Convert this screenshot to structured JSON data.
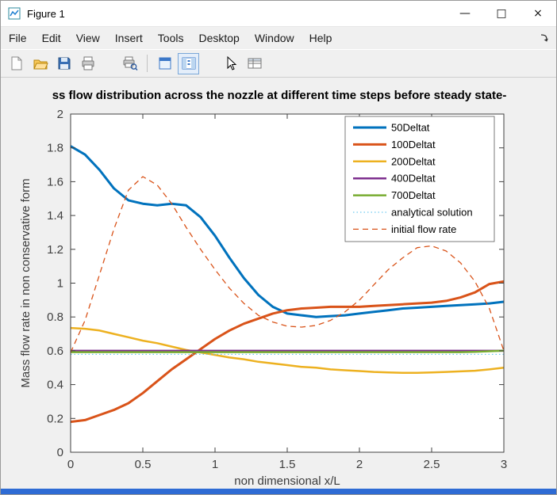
{
  "window": {
    "title": "Figure 1",
    "controls": {
      "minimize": "—",
      "maximize": "□",
      "close": "×"
    }
  },
  "menu": {
    "items": [
      "File",
      "Edit",
      "View",
      "Insert",
      "Tools",
      "Desktop",
      "Window",
      "Help"
    ]
  },
  "toolbar": {
    "icons": [
      "new-figure-icon",
      "open-file-icon",
      "save-figure-icon",
      "print-figure-icon",
      "print-preview-icon",
      "hide-plot-tools-icon",
      "show-plot-tools-icon",
      "pointer-icon",
      "property-editor-icon"
    ]
  },
  "chart_data": {
    "type": "line",
    "title": "ss flow distribution across the nozzle at different time steps before steady state-",
    "xlabel": "non dimensional x/L",
    "ylabel": "Mass flow rate in non conservative form",
    "xlim": [
      0,
      3
    ],
    "ylim": [
      0,
      2
    ],
    "xticks": [
      0,
      0.5,
      1,
      1.5,
      2,
      2.5,
      3
    ],
    "yticks": [
      0,
      0.2,
      0.4,
      0.6,
      0.8,
      1,
      1.2,
      1.4,
      1.6,
      1.8,
      2
    ],
    "legend_position": "northeast",
    "grid": false,
    "x": [
      0,
      0.1,
      0.2,
      0.3,
      0.4,
      0.5,
      0.6,
      0.7,
      0.8,
      0.9,
      1,
      1.1,
      1.2,
      1.3,
      1.4,
      1.5,
      1.6,
      1.7,
      1.8,
      1.9,
      2,
      2.1,
      2.2,
      2.3,
      2.4,
      2.5,
      2.6,
      2.7,
      2.8,
      2.9,
      3
    ],
    "series": [
      {
        "name": "50Deltat",
        "color": "#0072BD",
        "width": 3,
        "dash": null,
        "values": [
          1.81,
          1.76,
          1.67,
          1.56,
          1.49,
          1.47,
          1.46,
          1.47,
          1.46,
          1.39,
          1.28,
          1.15,
          1.03,
          0.93,
          0.86,
          0.82,
          0.81,
          0.8,
          0.805,
          0.81,
          0.82,
          0.83,
          0.84,
          0.85,
          0.855,
          0.86,
          0.865,
          0.87,
          0.875,
          0.88,
          0.89
        ]
      },
      {
        "name": "100Deltat",
        "color": "#D95319",
        "width": 3,
        "dash": null,
        "values": [
          0.18,
          0.19,
          0.22,
          0.25,
          0.29,
          0.35,
          0.42,
          0.49,
          0.55,
          0.61,
          0.67,
          0.72,
          0.76,
          0.79,
          0.82,
          0.84,
          0.85,
          0.855,
          0.86,
          0.86,
          0.86,
          0.865,
          0.87,
          0.875,
          0.88,
          0.885,
          0.895,
          0.915,
          0.945,
          0.995,
          1.01
        ]
      },
      {
        "name": "200Deltat",
        "color": "#EDB120",
        "width": 2.5,
        "dash": null,
        "values": [
          0.735,
          0.73,
          0.72,
          0.7,
          0.68,
          0.66,
          0.645,
          0.625,
          0.605,
          0.59,
          0.575,
          0.56,
          0.55,
          0.535,
          0.525,
          0.515,
          0.505,
          0.5,
          0.49,
          0.485,
          0.48,
          0.475,
          0.472,
          0.47,
          0.47,
          0.472,
          0.475,
          0.478,
          0.482,
          0.49,
          0.5
        ]
      },
      {
        "name": "400Deltat",
        "color": "#7E2F8E",
        "width": 2.5,
        "dash": null,
        "values": [
          0.6,
          0.6,
          0.6,
          0.6,
          0.6,
          0.6,
          0.6,
          0.6,
          0.6,
          0.6,
          0.6,
          0.6,
          0.6,
          0.6,
          0.6,
          0.6,
          0.6,
          0.6,
          0.6,
          0.6,
          0.6,
          0.6,
          0.6,
          0.6,
          0.6,
          0.6,
          0.6,
          0.6,
          0.6,
          0.6,
          0.6
        ]
      },
      {
        "name": "700Deltat",
        "color": "#77AC30",
        "width": 2.5,
        "dash": null,
        "values": [
          0.592,
          0.592,
          0.592,
          0.592,
          0.592,
          0.592,
          0.592,
          0.592,
          0.592,
          0.592,
          0.592,
          0.592,
          0.592,
          0.592,
          0.592,
          0.592,
          0.592,
          0.592,
          0.592,
          0.592,
          0.592,
          0.592,
          0.592,
          0.592,
          0.592,
          0.592,
          0.592,
          0.592,
          0.594,
          0.597,
          0.601
        ]
      },
      {
        "name": "analytical solution",
        "color": "#4DBEEE",
        "width": 1,
        "dash": "1.5 3",
        "values": [
          0.579,
          0.579,
          0.579,
          0.579,
          0.579,
          0.579,
          0.579,
          0.579,
          0.579,
          0.579,
          0.579,
          0.579,
          0.579,
          0.579,
          0.579,
          0.579,
          0.579,
          0.579,
          0.579,
          0.579,
          0.579,
          0.579,
          0.579,
          0.579,
          0.579,
          0.579,
          0.579,
          0.579,
          0.579,
          0.579,
          0.579
        ]
      },
      {
        "name": "initial flow rate",
        "color": "#D95319",
        "width": 1.3,
        "dash": "7 5",
        "values": [
          0.59,
          0.78,
          1.05,
          1.32,
          1.55,
          1.63,
          1.58,
          1.47,
          1.33,
          1.2,
          1.08,
          0.97,
          0.88,
          0.81,
          0.77,
          0.745,
          0.74,
          0.75,
          0.78,
          0.83,
          0.9,
          0.99,
          1.08,
          1.15,
          1.21,
          1.22,
          1.19,
          1.12,
          1.01,
          0.85,
          0.6
        ]
      }
    ]
  }
}
